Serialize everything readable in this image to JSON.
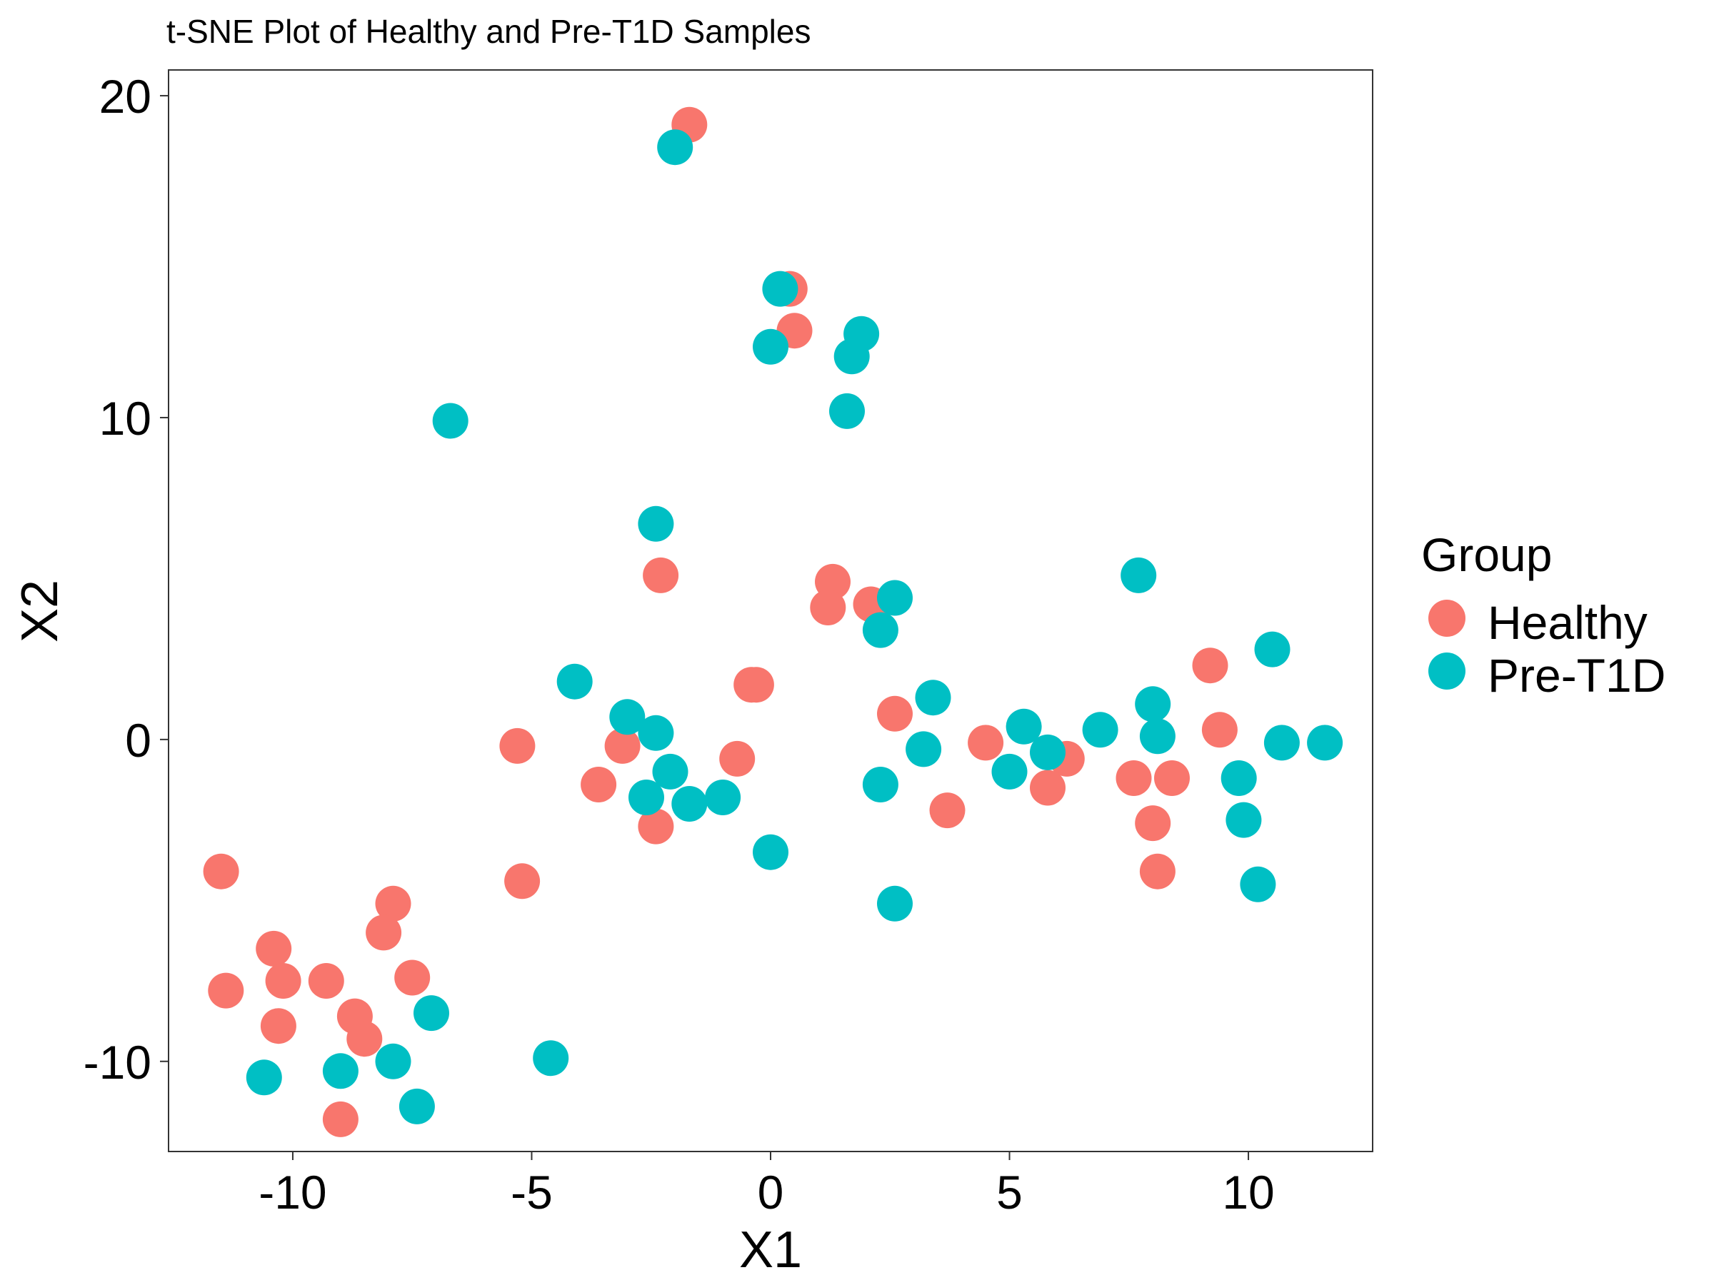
{
  "chart_data": {
    "type": "scatter",
    "title": "t-SNE Plot of Healthy and Pre-T1D Samples",
    "xlabel": "X1",
    "ylabel": "X2",
    "xlim": [
      -12.6,
      12.6
    ],
    "ylim": [
      -12.8,
      20.8
    ],
    "x_ticks": [
      -10,
      -5,
      0,
      5,
      10
    ],
    "y_ticks": [
      -10,
      0,
      10,
      20
    ],
    "x_tick_labels": [
      "-10",
      "-5",
      "0",
      "5",
      "10"
    ],
    "y_tick_labels": [
      "-10",
      "0",
      "10",
      "20"
    ],
    "grid": false,
    "legend": {
      "title": "Group",
      "position": "right"
    },
    "series": [
      {
        "name": "Healthy",
        "color": "#F8766D",
        "points": [
          [
            -1.7,
            19.1
          ],
          [
            0.4,
            14.0
          ],
          [
            0.5,
            12.7
          ],
          [
            -2.3,
            5.1
          ],
          [
            1.3,
            4.9
          ],
          [
            1.2,
            4.1
          ],
          [
            2.1,
            4.2
          ],
          [
            -0.4,
            1.7
          ],
          [
            -0.3,
            1.7
          ],
          [
            9.2,
            2.3
          ],
          [
            9.4,
            0.3
          ],
          [
            -5.3,
            -0.2
          ],
          [
            -3.1,
            -0.2
          ],
          [
            -0.7,
            -0.6
          ],
          [
            2.6,
            0.8
          ],
          [
            4.5,
            -0.1
          ],
          [
            6.2,
            -0.6
          ],
          [
            -3.6,
            -1.4
          ],
          [
            5.8,
            -1.5
          ],
          [
            7.6,
            -1.2
          ],
          [
            8.4,
            -1.2
          ],
          [
            3.7,
            -2.2
          ],
          [
            -2.4,
            -2.7
          ],
          [
            8.0,
            -2.6
          ],
          [
            8.1,
            -4.1
          ],
          [
            -11.5,
            -4.1
          ],
          [
            -5.2,
            -4.4
          ],
          [
            -7.9,
            -5.1
          ],
          [
            -8.1,
            -6.0
          ],
          [
            -10.4,
            -6.5
          ],
          [
            -11.4,
            -7.8
          ],
          [
            -10.2,
            -7.5
          ],
          [
            -9.3,
            -7.5
          ],
          [
            -7.5,
            -7.4
          ],
          [
            -10.3,
            -8.9
          ],
          [
            -8.7,
            -8.6
          ],
          [
            -8.5,
            -9.3
          ],
          [
            -9.0,
            -11.8
          ]
        ]
      },
      {
        "name": "Pre-T1D",
        "color": "#00BFC4",
        "points": [
          [
            -2.0,
            18.4
          ],
          [
            0.2,
            14.0
          ],
          [
            0.0,
            12.2
          ],
          [
            1.9,
            12.6
          ],
          [
            1.7,
            11.9
          ],
          [
            1.6,
            10.2
          ],
          [
            -6.7,
            9.9
          ],
          [
            -2.4,
            6.7
          ],
          [
            7.7,
            5.1
          ],
          [
            2.6,
            4.4
          ],
          [
            2.3,
            3.4
          ],
          [
            10.5,
            2.8
          ],
          [
            -4.1,
            1.8
          ],
          [
            -3.0,
            0.7
          ],
          [
            3.4,
            1.3
          ],
          [
            8.0,
            1.1
          ],
          [
            -2.4,
            0.2
          ],
          [
            5.3,
            0.4
          ],
          [
            6.9,
            0.3
          ],
          [
            8.1,
            0.1
          ],
          [
            10.7,
            -0.1
          ],
          [
            11.6,
            -0.1
          ],
          [
            3.2,
            -0.3
          ],
          [
            5.8,
            -0.4
          ],
          [
            -2.1,
            -1.0
          ],
          [
            5.0,
            -1.0
          ],
          [
            9.8,
            -1.2
          ],
          [
            2.3,
            -1.4
          ],
          [
            -2.6,
            -1.8
          ],
          [
            -1.7,
            -2.0
          ],
          [
            -1.0,
            -1.8
          ],
          [
            9.9,
            -2.5
          ],
          [
            0.0,
            -3.5
          ],
          [
            10.2,
            -4.5
          ],
          [
            2.6,
            -5.1
          ],
          [
            -7.1,
            -8.5
          ],
          [
            -4.6,
            -9.9
          ],
          [
            -7.9,
            -10.0
          ],
          [
            -9.0,
            -10.3
          ],
          [
            -10.6,
            -10.5
          ],
          [
            -7.4,
            -11.4
          ]
        ]
      }
    ]
  }
}
